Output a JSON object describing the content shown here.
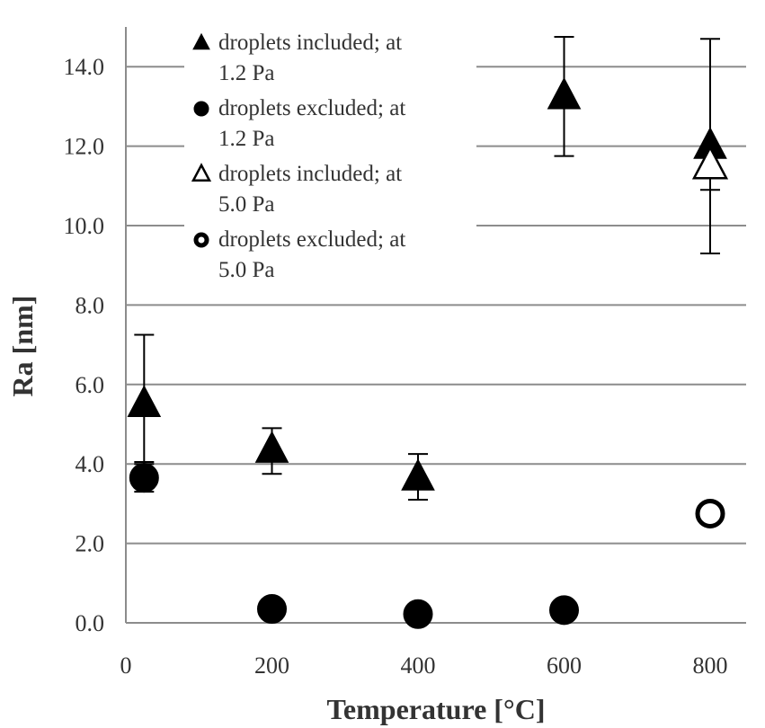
{
  "chart_data": {
    "type": "scatter",
    "title": "",
    "xlabel": "Temperature [°C]",
    "ylabel": "Ra [nm]",
    "xlim": [
      0,
      850
    ],
    "ylim": [
      0,
      14.8
    ],
    "x_ticks": [
      "0",
      "200",
      "400",
      "600",
      "800"
    ],
    "y_ticks": [
      "0.0",
      "2.0",
      "4.0",
      "6.0",
      "8.0",
      "10.0",
      "12.0",
      "14.0"
    ],
    "grid": "horizontal",
    "legend_position": "top-left",
    "series": [
      {
        "name": "droplets included; at 1.2 Pa",
        "marker": "filled-triangle",
        "points": [
          {
            "x": 25,
            "y": 5.5,
            "err_low": 1.5,
            "err_high": 1.75
          },
          {
            "x": 200,
            "y": 4.35,
            "err_low": 0.6,
            "err_high": 0.55
          },
          {
            "x": 400,
            "y": 3.65,
            "err_low": 0.55,
            "err_high": 0.6
          },
          {
            "x": 600,
            "y": 13.25,
            "err_low": 1.5,
            "err_high": 1.5
          },
          {
            "x": 800,
            "y": 12.0,
            "err_low": 1.1,
            "err_high": 2.7
          }
        ]
      },
      {
        "name": "droplets excluded; at 1.2 Pa",
        "marker": "filled-circle",
        "points": [
          {
            "x": 25,
            "y": 3.65,
            "err_low": 0.35,
            "err_high": 0.4
          },
          {
            "x": 200,
            "y": 0.35
          },
          {
            "x": 400,
            "y": 0.22
          },
          {
            "x": 600,
            "y": 0.32
          }
        ]
      },
      {
        "name": "droplets included; at 5.0 Pa",
        "marker": "open-triangle",
        "points": [
          {
            "x": 800,
            "y": 11.5,
            "err_low": 2.2,
            "err_high": 0
          }
        ]
      },
      {
        "name": "droplets excluded; at 5.0 Pa",
        "marker": "open-circle",
        "points": [
          {
            "x": 800,
            "y": 2.75
          }
        ]
      }
    ],
    "legend_lines": [
      [
        "droplets included; at",
        "1.2 Pa"
      ],
      [
        "droplets excluded; at",
        "1.2 Pa"
      ],
      [
        "droplets included; at",
        "5.0 Pa"
      ],
      [
        "droplets excluded; at",
        "5.0 Pa"
      ]
    ]
  }
}
